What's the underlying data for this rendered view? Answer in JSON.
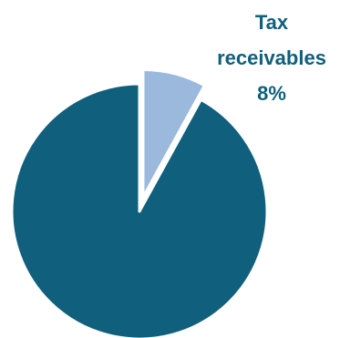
{
  "chart_data": {
    "type": "pie",
    "slices": [
      {
        "label": "",
        "value": 92,
        "color": "#0f5f7d"
      },
      {
        "label": "Tax receivables",
        "value": 8,
        "display": "8%",
        "color": "#9ab9dc",
        "exploded": true
      }
    ],
    "label_color": "#0f5f7d",
    "start_angle": "12 o'clock, clockwise",
    "legend": "none"
  }
}
